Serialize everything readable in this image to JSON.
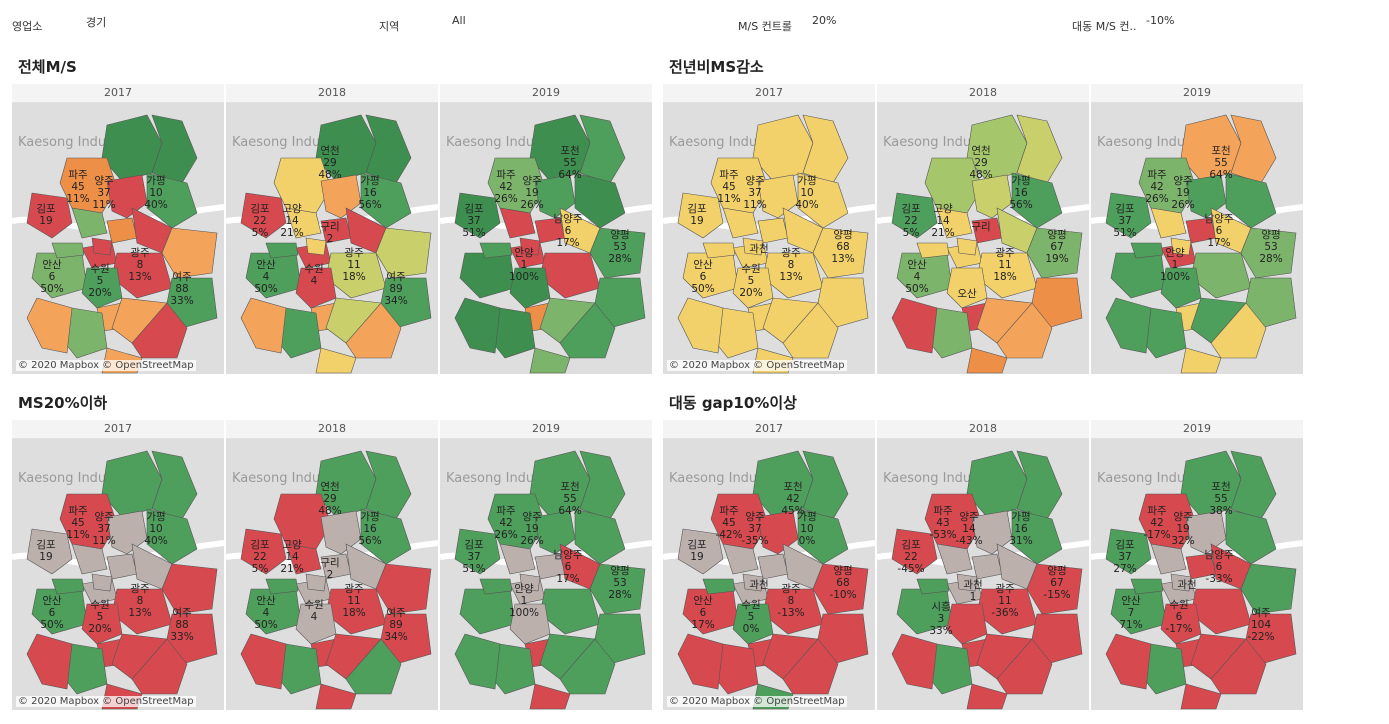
{
  "filters": [
    {
      "label": "영업소",
      "value": "경기"
    },
    {
      "label": "지역",
      "value": "All"
    },
    {
      "label": "M/S 컨트롤",
      "value": "20%"
    },
    {
      "label": "대동 M/S 컨..",
      "value": "-10%"
    }
  ],
  "map_common": {
    "kaesong": "Kaesong Industrial Regi",
    "credit": "© 2020 Mapbox © OpenStreetMap"
  },
  "colors": {
    "dark_green": "#3e8f4f",
    "green": "#4e9e5c",
    "mid_green": "#7db46c",
    "light_green": "#a6c66b",
    "olive": "#c8cf6b",
    "yellow": "#f2d16b",
    "orange": "#f4a45a",
    "dark_orange": "#ee8f47",
    "red": "#d6494f",
    "gray": "#bcb0ad",
    "land": "#dedede"
  },
  "sections": [
    {
      "title": "전체M/S",
      "years": [
        {
          "year": "2017",
          "labels": [
            {
              "n": "파주",
              "v": "45",
              "p": "11%"
            },
            {
              "n": "양주",
              "v": "37",
              "p": "11%"
            },
            {
              "n": "가평",
              "v": "10",
              "p": "40%"
            },
            {
              "n": "김포",
              "v": "19",
              "p": ""
            },
            {
              "n": "광주",
              "v": "8",
              "p": "13%"
            },
            {
              "n": "안산",
              "v": "6",
              "p": "50%"
            },
            {
              "n": "수원",
              "v": "5",
              "p": "20%"
            },
            {
              "n": "여주",
              "v": "88",
              "p": "33%"
            }
          ]
        },
        {
          "year": "2018",
          "labels": [
            {
              "n": "연천",
              "v": "29",
              "p": "48%"
            },
            {
              "n": "김포",
              "v": "22",
              "p": "5%"
            },
            {
              "n": "고양",
              "v": "14",
              "p": "21%"
            },
            {
              "n": "가평",
              "v": "16",
              "p": "56%"
            },
            {
              "n": "구리",
              "v": "2",
              "p": ""
            },
            {
              "n": "광주",
              "v": "11",
              "p": "18%"
            },
            {
              "n": "안산",
              "v": "4",
              "p": "50%"
            },
            {
              "n": "수원",
              "v": "4",
              "p": ""
            },
            {
              "n": "여주",
              "v": "89",
              "p": "34%"
            }
          ]
        },
        {
          "year": "2019",
          "labels": [
            {
              "n": "파주",
              "v": "42",
              "p": "26%"
            },
            {
              "n": "양주",
              "v": "19",
              "p": "26%"
            },
            {
              "n": "포천",
              "v": "55",
              "p": "64%"
            },
            {
              "n": "김포",
              "v": "37",
              "p": "51%"
            },
            {
              "n": "남양주",
              "v": "6",
              "p": "17%"
            },
            {
              "n": "양평",
              "v": "53",
              "p": "28%"
            },
            {
              "n": "안양",
              "v": "1",
              "p": "100%"
            }
          ]
        }
      ]
    },
    {
      "title": "전년비MS감소",
      "years": [
        {
          "year": "2017",
          "labels": [
            {
              "n": "파주",
              "v": "45",
              "p": "11%"
            },
            {
              "n": "양주",
              "v": "37",
              "p": "11%"
            },
            {
              "n": "가평",
              "v": "10",
              "p": "40%"
            },
            {
              "n": "김포",
              "v": "19",
              "p": ""
            },
            {
              "n": "양평",
              "v": "68",
              "p": "13%"
            },
            {
              "n": "과천",
              "v": "",
              "p": ""
            },
            {
              "n": "광주",
              "v": "8",
              "p": "13%"
            },
            {
              "n": "안산",
              "v": "6",
              "p": "50%"
            },
            {
              "n": "수원",
              "v": "5",
              "p": "20%"
            }
          ]
        },
        {
          "year": "2018",
          "labels": [
            {
              "n": "연천",
              "v": "29",
              "p": "48%"
            },
            {
              "n": "김포",
              "v": "22",
              "p": "5%"
            },
            {
              "n": "고양",
              "v": "14",
              "p": "21%"
            },
            {
              "n": "가평",
              "v": "16",
              "p": "56%"
            },
            {
              "n": "구리",
              "v": "",
              "p": ""
            },
            {
              "n": "양평",
              "v": "67",
              "p": "19%"
            },
            {
              "n": "광주",
              "v": "11",
              "p": "18%"
            },
            {
              "n": "안산",
              "v": "4",
              "p": "50%"
            },
            {
              "n": "오산",
              "v": "",
              "p": ""
            }
          ]
        },
        {
          "year": "2019",
          "labels": [
            {
              "n": "포천",
              "v": "55",
              "p": "64%"
            },
            {
              "n": "파주",
              "v": "42",
              "p": "26%"
            },
            {
              "n": "양주",
              "v": "19",
              "p": "26%"
            },
            {
              "n": "김포",
              "v": "37",
              "p": "51%"
            },
            {
              "n": "남양주",
              "v": "6",
              "p": "17%"
            },
            {
              "n": "양평",
              "v": "53",
              "p": "28%"
            },
            {
              "n": "안양",
              "v": "1",
              "p": "100%"
            }
          ]
        }
      ]
    },
    {
      "title": "MS20%이하",
      "years": [
        {
          "year": "2017",
          "labels": [
            {
              "n": "파주",
              "v": "45",
              "p": "11%"
            },
            {
              "n": "양주",
              "v": "37",
              "p": "11%"
            },
            {
              "n": "가평",
              "v": "10",
              "p": "40%"
            },
            {
              "n": "김포",
              "v": "19",
              "p": ""
            },
            {
              "n": "광주",
              "v": "8",
              "p": "13%"
            },
            {
              "n": "안산",
              "v": "6",
              "p": "50%"
            },
            {
              "n": "수원",
              "v": "5",
              "p": "20%"
            },
            {
              "n": "여주",
              "v": "88",
              "p": "33%"
            }
          ]
        },
        {
          "year": "2018",
          "labels": [
            {
              "n": "연천",
              "v": "29",
              "p": "48%"
            },
            {
              "n": "김포",
              "v": "22",
              "p": "5%"
            },
            {
              "n": "고양",
              "v": "14",
              "p": "21%"
            },
            {
              "n": "가평",
              "v": "16",
              "p": "56%"
            },
            {
              "n": "구리",
              "v": "2",
              "p": ""
            },
            {
              "n": "광주",
              "v": "11",
              "p": "18%"
            },
            {
              "n": "안산",
              "v": "4",
              "p": "50%"
            },
            {
              "n": "수원",
              "v": "4",
              "p": ""
            },
            {
              "n": "여주",
              "v": "89",
              "p": "34%"
            }
          ]
        },
        {
          "year": "2019",
          "labels": [
            {
              "n": "파주",
              "v": "42",
              "p": "26%"
            },
            {
              "n": "양주",
              "v": "19",
              "p": "26%"
            },
            {
              "n": "포천",
              "v": "55",
              "p": "64%"
            },
            {
              "n": "김포",
              "v": "37",
              "p": "51%"
            },
            {
              "n": "남양주",
              "v": "6",
              "p": "17%"
            },
            {
              "n": "양평",
              "v": "53",
              "p": "28%"
            },
            {
              "n": "안양",
              "v": "1",
              "p": "100%"
            }
          ]
        }
      ]
    },
    {
      "title": "대동 gap10%이상",
      "years": [
        {
          "year": "2017",
          "labels": [
            {
              "n": "포천",
              "v": "42",
              "p": "45%"
            },
            {
              "n": "파주",
              "v": "45",
              "p": "-42%"
            },
            {
              "n": "양주",
              "v": "37",
              "p": "-35%"
            },
            {
              "n": "가평",
              "v": "10",
              "p": "0%"
            },
            {
              "n": "김포",
              "v": "19",
              "p": ""
            },
            {
              "n": "양평",
              "v": "68",
              "p": "-10%"
            },
            {
              "n": "과천",
              "v": "",
              "p": ""
            },
            {
              "n": "광주",
              "v": "8",
              "p": "-13%"
            },
            {
              "n": "안산",
              "v": "6",
              "p": "17%"
            },
            {
              "n": "수원",
              "v": "5",
              "p": "0%"
            }
          ]
        },
        {
          "year": "2018",
          "labels": [
            {
              "n": "파주",
              "v": "43",
              "p": "-53%"
            },
            {
              "n": "양주",
              "v": "14",
              "p": "-43%"
            },
            {
              "n": "가평",
              "v": "16",
              "p": "31%"
            },
            {
              "n": "김포",
              "v": "22",
              "p": "-45%"
            },
            {
              "n": "양평",
              "v": "67",
              "p": "-15%"
            },
            {
              "n": "시흥",
              "v": "3",
              "p": "33%"
            },
            {
              "n": "과천",
              "v": "1",
              "p": ""
            },
            {
              "n": "광주",
              "v": "11",
              "p": "-36%"
            }
          ]
        },
        {
          "year": "2019",
          "labels": [
            {
              "n": "포천",
              "v": "55",
              "p": "38%"
            },
            {
              "n": "파주",
              "v": "42",
              "p": "-17%"
            },
            {
              "n": "양주",
              "v": "19",
              "p": "32%"
            },
            {
              "n": "김포",
              "v": "37",
              "p": "27%"
            },
            {
              "n": "남양주",
              "v": "6",
              "p": "-33%"
            },
            {
              "n": "과천",
              "v": "",
              "p": ""
            },
            {
              "n": "안산",
              "v": "7",
              "p": "71%"
            },
            {
              "n": "수원",
              "v": "6",
              "p": "-17%"
            },
            {
              "n": "여주",
              "v": "104",
              "p": "-22%"
            }
          ]
        }
      ]
    }
  ]
}
